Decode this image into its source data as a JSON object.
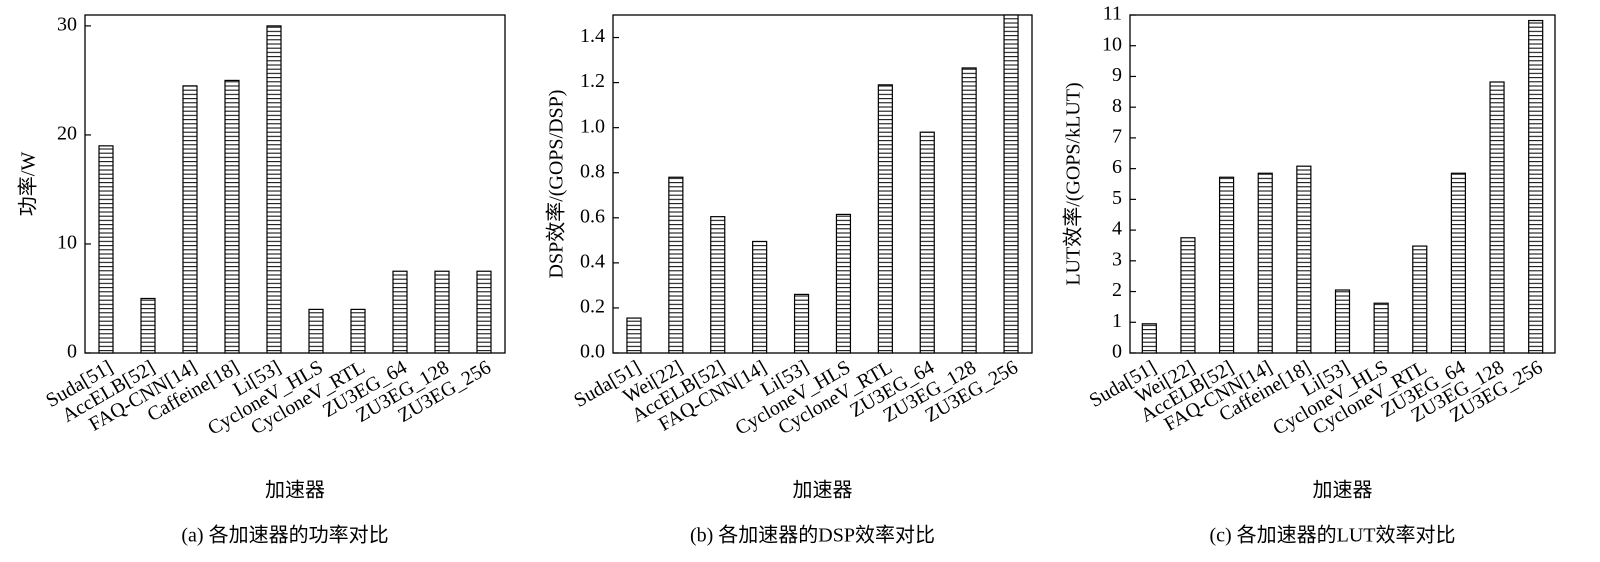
{
  "chart_data": [
    {
      "type": "bar",
      "y_label": "功率/W",
      "x_label": "加速器",
      "caption": "(a) 各加速器的功率对比",
      "categories": [
        "Suda[51]",
        "AccELB[52]",
        "FAQ-CNN[14]",
        "Caffeine[18]",
        "Li[53]",
        "CycloneV_HLS",
        "CycloneV_RTL",
        "ZU3EG_64",
        "ZU3EG_128",
        "ZU3EG_256"
      ],
      "values": [
        19,
        5,
        24.5,
        25,
        30,
        4,
        4,
        7.5,
        7.5,
        7.5
      ],
      "color": "#000000",
      "ylim": [
        0,
        31
      ],
      "yticks": [
        0,
        10,
        20,
        30
      ]
    },
    {
      "type": "bar",
      "y_label": "DSP效率/(GOPS/DSP)",
      "x_label": "加速器",
      "caption": "(b) 各加速器的DSP效率对比",
      "categories": [
        "Suda[51]",
        "Wei[22]",
        "AccELB[52]",
        "FAQ-CNN[14]",
        "Li[53]",
        "CycloneV_HLS",
        "CycloneV_RTL",
        "ZU3EG_64",
        "ZU3EG_128",
        "ZU3EG_256"
      ],
      "values": [
        0.155,
        0.78,
        0.605,
        0.495,
        0.26,
        0.615,
        1.19,
        0.98,
        1.265,
        1.5
      ],
      "color": "#000000",
      "ylim": [
        0,
        1.5
      ],
      "yticks": [
        {
          "value": 0,
          "label": "0.0"
        },
        0.2,
        0.4,
        0.6,
        0.8,
        {
          "value": 1,
          "label": "1.0"
        },
        1.2,
        1.4
      ]
    },
    {
      "type": "bar",
      "y_label": "LUT效率/(GOPS/kLUT)",
      "x_label": "加速器",
      "caption": "(c) 各加速器的LUT效率对比",
      "categories": [
        "Suda[51]",
        "Wei[22]",
        "AccELB[52]",
        "FAQ-CNN[14]",
        "Caffeine[18]",
        "Li[53]",
        "CycloneV_HLS",
        "CycloneV_RTL",
        "ZU3EG_64",
        "ZU3EG_128",
        "ZU3EG_256"
      ],
      "values": [
        0.95,
        3.75,
        5.72,
        5.85,
        6.08,
        2.05,
        1.62,
        3.48,
        5.85,
        8.82,
        10.82
      ],
      "color": "#000000",
      "ylim": [
        0,
        11
      ],
      "yticks": [
        0,
        1,
        2,
        3,
        4,
        5,
        6,
        7,
        8,
        9,
        10,
        11
      ]
    }
  ]
}
